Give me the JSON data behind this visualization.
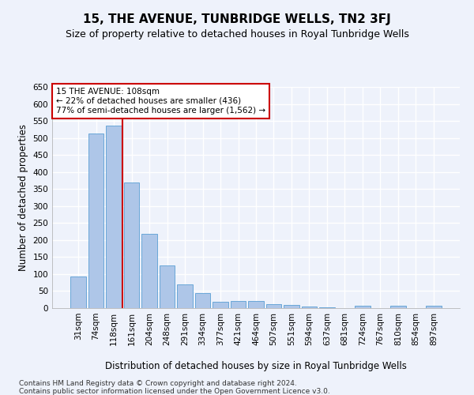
{
  "title": "15, THE AVENUE, TUNBRIDGE WELLS, TN2 3FJ",
  "subtitle": "Size of property relative to detached houses in Royal Tunbridge Wells",
  "xlabel": "Distribution of detached houses by size in Royal Tunbridge Wells",
  "ylabel": "Number of detached properties",
  "footnote1": "Contains HM Land Registry data © Crown copyright and database right 2024.",
  "footnote2": "Contains public sector information licensed under the Open Government Licence v3.0.",
  "categories": [
    "31sqm",
    "74sqm",
    "118sqm",
    "161sqm",
    "204sqm",
    "248sqm",
    "291sqm",
    "334sqm",
    "377sqm",
    "421sqm",
    "464sqm",
    "507sqm",
    "551sqm",
    "594sqm",
    "637sqm",
    "681sqm",
    "724sqm",
    "767sqm",
    "810sqm",
    "854sqm",
    "897sqm"
  ],
  "values": [
    93,
    512,
    537,
    369,
    219,
    126,
    70,
    43,
    18,
    21,
    21,
    12,
    10,
    4,
    2,
    1,
    6,
    1,
    6,
    1,
    6
  ],
  "bar_color": "#aec6e8",
  "bar_edge_color": "#5a9fd4",
  "vline_x": 2.5,
  "vline_color": "#cc0000",
  "annotation_text": "15 THE AVENUE: 108sqm\n← 22% of detached houses are smaller (436)\n77% of semi-detached houses are larger (1,562) →",
  "annotation_box_color": "#ffffff",
  "annotation_box_edge_color": "#cc0000",
  "ylim": [
    0,
    650
  ],
  "yticks": [
    0,
    50,
    100,
    150,
    200,
    250,
    300,
    350,
    400,
    450,
    500,
    550,
    600,
    650
  ],
  "bg_color": "#eef2fb",
  "plot_bg_color": "#eef2fb",
  "grid_color": "#ffffff",
  "title_fontsize": 11,
  "subtitle_fontsize": 9,
  "label_fontsize": 8.5,
  "tick_fontsize": 7.5,
  "footnote_fontsize": 6.5
}
